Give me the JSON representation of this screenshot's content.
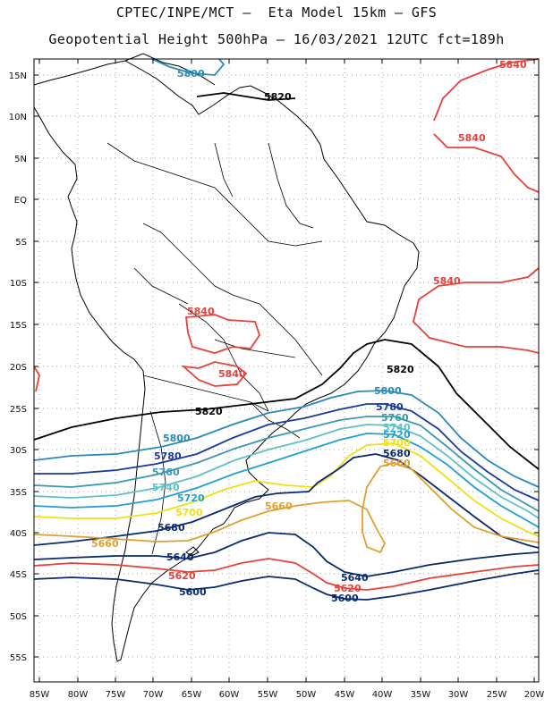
{
  "header": {
    "line1": "CPTEC/INPE/MCT –  Eta Model 15km – GFS",
    "line2": "Geopotential Height 500hPa – 16/03/2021 12UTC fct=189h"
  },
  "axes": {
    "lat_labels": [
      "15N",
      "10N",
      "5N",
      "EQ",
      "5S",
      "10S",
      "15S",
      "20S",
      "25S",
      "30S",
      "35S",
      "40S",
      "45S",
      "50S",
      "55S"
    ],
    "lon_labels": [
      "85W",
      "80W",
      "75W",
      "70W",
      "65W",
      "60W",
      "55W",
      "50W",
      "45W",
      "40W",
      "35W",
      "30W",
      "25W",
      "20W"
    ]
  },
  "colors": {
    "c5840": "#e8403a",
    "c5820": "#000000",
    "c5800": "#2a8ab8",
    "c5780": "#1a3a9c",
    "c5760": "#3a98b0",
    "c5740": "#5fc0c8",
    "c5720": "#20a0d0",
    "c5700": "#f0e010",
    "c5680": "#0a2a6c",
    "c5660": "#e0a030",
    "c5640": "#0a2a6c",
    "c5620": "#e8403a",
    "c5600": "#0a2a6c",
    "coast": "#000000",
    "grid": "#888888"
  },
  "contour_labels": {
    "l5840_top": "5840",
    "l5840_ne": "5840",
    "l5840_e": "5840",
    "l5840_bol": "5840",
    "l5840_par": "5840",
    "l5820_n": "5820",
    "l5820_e": "5820",
    "l5820_w": "5820",
    "l5800_n": "5800",
    "l5800_e": "5800",
    "l5800_w": "5800",
    "l5780_e": "5780",
    "l5780_w": "5780",
    "l5760_e": "5760",
    "l5760_w": "5760",
    "l5740_e": "5740",
    "l5740_w": "5740",
    "l5720_e": "5720",
    "l5720_w": "5720",
    "l5700_e": "5700",
    "l5700_w": "5700",
    "l5680_e": "5680",
    "l5680_w": "5680",
    "l5660_e": "5660",
    "l5660_c": "5660",
    "l5660_w": "5660",
    "l5640_w": "5640",
    "l5640_e": "5640",
    "l5620_w": "5620",
    "l5620_e": "5620",
    "l5600_w": "5600",
    "l5600_e": "5600"
  }
}
